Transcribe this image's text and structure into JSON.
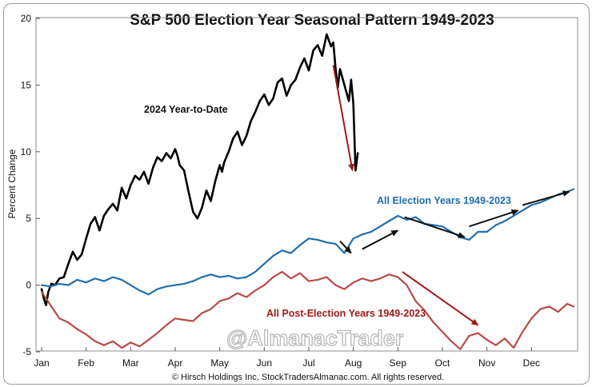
{
  "chart_data": {
    "type": "line",
    "title": "S&P 500 Election Year Seasonal Pattern 1949-2023",
    "xlabel": "",
    "ylabel": "Percent Change",
    "ylim": [
      -5,
      20
    ],
    "yticks": [
      "-5",
      "0",
      "5",
      "10",
      "15",
      "20"
    ],
    "categories": [
      "Jan",
      "Feb",
      "Mar",
      "Apr",
      "May",
      "Jun",
      "Jul",
      "Aug",
      "Sep",
      "Oct",
      "Nov",
      "Dec"
    ],
    "grid": false,
    "series": [
      {
        "name": "2024 Year-to-Date",
        "color": "#000000",
        "x": [
          0,
          0.05,
          0.1,
          0.15,
          0.22,
          0.3,
          0.4,
          0.5,
          0.6,
          0.7,
          0.8,
          0.9,
          1.0,
          1.1,
          1.2,
          1.3,
          1.4,
          1.5,
          1.6,
          1.7,
          1.8,
          1.9,
          2.0,
          2.1,
          2.2,
          2.3,
          2.4,
          2.5,
          2.6,
          2.7,
          2.8,
          2.9,
          3.0,
          3.05,
          3.1,
          3.2,
          3.3,
          3.4,
          3.5,
          3.6,
          3.7,
          3.8,
          3.9,
          4.0,
          4.05,
          4.1,
          4.2,
          4.3,
          4.4,
          4.5,
          4.6,
          4.7,
          4.8,
          4.9,
          5.0,
          5.1,
          5.2,
          5.3,
          5.4,
          5.5,
          5.6,
          5.7,
          5.8,
          5.9,
          6.0,
          6.1,
          6.2,
          6.3,
          6.4,
          6.5,
          6.55,
          6.6,
          6.65,
          6.7,
          6.8,
          6.9,
          6.95,
          7.0,
          7.05,
          7.1
        ],
        "values": [
          -0.3,
          -1.0,
          -1.5,
          -0.5,
          0.1,
          0.0,
          0.5,
          0.6,
          1.6,
          2.5,
          1.9,
          2.3,
          3.5,
          4.6,
          5.1,
          4.1,
          5.2,
          5.7,
          6.1,
          5.6,
          7.3,
          6.5,
          7.5,
          8.2,
          7.9,
          8.5,
          7.6,
          8.8,
          9.6,
          9.3,
          9.9,
          9.5,
          10.2,
          9.7,
          9.0,
          8.6,
          7.0,
          5.5,
          5.0,
          5.8,
          7.1,
          6.3,
          7.8,
          9.0,
          8.5,
          9.2,
          10.0,
          11.0,
          11.5,
          10.5,
          11.2,
          12.3,
          13.0,
          13.8,
          14.3,
          13.5,
          14.0,
          15.2,
          15.5,
          14.2,
          15.0,
          15.4,
          16.3,
          17.0,
          16.1,
          17.6,
          18.0,
          17.2,
          18.8,
          17.9,
          18.2,
          16.3,
          14.8,
          16.2,
          15.0,
          13.8,
          15.4,
          13.6,
          8.6,
          9.9
        ]
      },
      {
        "name": "All Election Years 1949-2023",
        "color": "#1f6fae",
        "x": [
          0,
          0.2,
          0.4,
          0.6,
          0.8,
          1.0,
          1.2,
          1.4,
          1.6,
          1.8,
          2.0,
          2.2,
          2.4,
          2.6,
          2.8,
          3.0,
          3.2,
          3.4,
          3.6,
          3.8,
          4.0,
          4.2,
          4.4,
          4.6,
          4.8,
          5.0,
          5.2,
          5.4,
          5.6,
          5.8,
          6.0,
          6.2,
          6.4,
          6.6,
          6.8,
          7.0,
          7.2,
          7.4,
          7.6,
          7.8,
          8.0,
          8.2,
          8.4,
          8.6,
          8.8,
          9.0,
          9.2,
          9.4,
          9.6,
          9.8,
          10.0,
          10.2,
          10.4,
          10.6,
          10.8,
          11.0,
          11.2,
          11.4,
          11.6,
          11.8,
          11.95
        ],
        "values": [
          0.0,
          -0.1,
          0.1,
          0.0,
          0.4,
          0.2,
          0.5,
          0.3,
          0.6,
          0.4,
          0.0,
          -0.4,
          -0.7,
          -0.3,
          -0.1,
          0.0,
          0.1,
          0.3,
          0.6,
          0.8,
          0.6,
          0.7,
          0.5,
          0.6,
          1.0,
          1.6,
          2.2,
          2.6,
          2.4,
          3.0,
          3.5,
          3.4,
          3.2,
          3.1,
          2.4,
          3.5,
          3.8,
          4.0,
          4.4,
          4.8,
          5.2,
          4.9,
          5.1,
          4.6,
          4.5,
          4.4,
          4.0,
          3.6,
          3.4,
          4.0,
          4.0,
          4.5,
          4.8,
          5.2,
          5.6,
          6.0,
          6.2,
          6.5,
          6.8,
          7.0,
          7.2
        ]
      },
      {
        "name": "All Post-Election Years 1949-2023",
        "color": "#b94a48",
        "x": [
          0,
          0.2,
          0.4,
          0.6,
          0.8,
          1.0,
          1.2,
          1.4,
          1.6,
          1.8,
          2.0,
          2.2,
          2.4,
          2.6,
          2.8,
          3.0,
          3.2,
          3.4,
          3.6,
          3.8,
          4.0,
          4.2,
          4.4,
          4.6,
          4.8,
          5.0,
          5.2,
          5.4,
          5.6,
          5.8,
          6.0,
          6.2,
          6.4,
          6.6,
          6.8,
          7.0,
          7.2,
          7.4,
          7.6,
          7.8,
          8.0,
          8.2,
          8.4,
          8.6,
          8.8,
          9.0,
          9.2,
          9.4,
          9.6,
          9.8,
          10.0,
          10.2,
          10.4,
          10.6,
          10.8,
          11.0,
          11.2,
          11.4,
          11.6,
          11.8,
          11.95
        ],
        "values": [
          -0.5,
          -1.5,
          -2.5,
          -2.8,
          -3.3,
          -3.7,
          -4.2,
          -4.5,
          -4.2,
          -4.7,
          -4.3,
          -4.6,
          -4.1,
          -3.6,
          -3.0,
          -2.5,
          -2.6,
          -2.7,
          -2.1,
          -1.8,
          -1.2,
          -1.0,
          -0.6,
          -0.9,
          -0.4,
          0.0,
          0.6,
          1.0,
          0.5,
          0.9,
          0.3,
          0.4,
          0.6,
          0.0,
          -0.3,
          0.2,
          0.5,
          0.3,
          0.5,
          0.8,
          0.6,
          0.0,
          -1.2,
          -1.9,
          -2.8,
          -3.5,
          -4.2,
          -4.8,
          -3.8,
          -3.6,
          -4.1,
          -4.5,
          -4.0,
          -4.7,
          -3.5,
          -2.5,
          -1.8,
          -1.6,
          -2.0,
          -1.4,
          -1.6
        ]
      }
    ],
    "annotations": {
      "label_2024": "2024 Year-to-Date",
      "label_election": "All Election Years 1949-2023",
      "label_post_election": "All Post-Election Years 1949-2023",
      "watermark": "@AlmanacTrader"
    },
    "arrow_colors": {
      "black": "#111111",
      "red": "#a11a1a"
    },
    "arrows": [
      {
        "color": "black",
        "from": [
          6.7,
          3.3
        ],
        "to": [
          6.95,
          2.4
        ]
      },
      {
        "color": "black",
        "from": [
          7.2,
          2.7
        ],
        "to": [
          8.0,
          4.1
        ]
      },
      {
        "color": "black",
        "from": [
          8.15,
          5.1
        ],
        "to": [
          9.5,
          3.6
        ]
      },
      {
        "color": "black",
        "from": [
          9.6,
          4.4
        ],
        "to": [
          10.7,
          5.6
        ]
      },
      {
        "color": "black",
        "from": [
          10.8,
          6.0
        ],
        "to": [
          11.85,
          7.0
        ]
      },
      {
        "color": "red",
        "from": [
          6.55,
          16.5
        ],
        "to": [
          6.98,
          8.6
        ]
      },
      {
        "color": "red",
        "from": [
          8.1,
          1.0
        ],
        "to": [
          9.8,
          -3.0
        ]
      }
    ]
  },
  "footer": {
    "copyright": "© Hirsch Holdings Inc, StockTradersAlmanac.com. All rights reserved."
  }
}
